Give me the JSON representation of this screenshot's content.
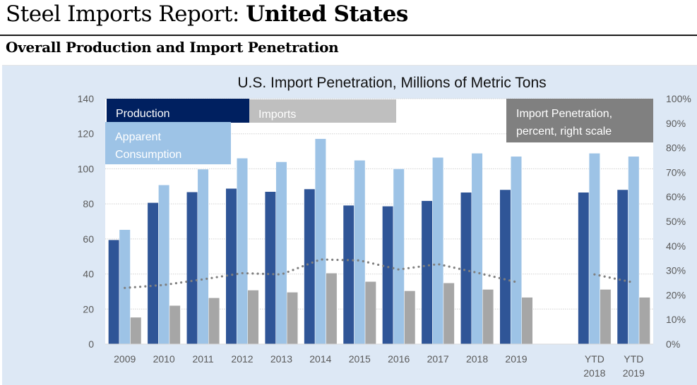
{
  "header": {
    "title_prefix": "Steel Imports Report: ",
    "title_bold": "United States",
    "section_title": "Overall Production and Import Penetration"
  },
  "colors": {
    "production": "#2f5597",
    "apparent_consumption": "#9dc3e6",
    "imports": "#a6a6a6",
    "import_penetration_line": "#7f7f7f",
    "legend_production_bg": "#002060",
    "legend_consumption_bg": "#9dc3e6",
    "legend_imports_bg": "#bfbfbf",
    "legend_penetration_bg": "#808080",
    "panel_bg": "#dde8f5"
  },
  "chart_data": {
    "type": "bar",
    "title": "U.S. Import Penetration, Millions of Metric Tons",
    "categories": [
      "2009",
      "2010",
      "2011",
      "2012",
      "2013",
      "2014",
      "2015",
      "2016",
      "2017",
      "2018",
      "2019",
      "",
      "YTD 2018",
      "YTD 2019"
    ],
    "category_labels": [
      [
        "2009"
      ],
      [
        "2010"
      ],
      [
        "2011"
      ],
      [
        "2012"
      ],
      [
        "2013"
      ],
      [
        "2014"
      ],
      [
        "2015"
      ],
      [
        "2016"
      ],
      [
        "2017"
      ],
      [
        "2018"
      ],
      [
        "2019"
      ],
      [],
      [
        "YTD",
        "2018"
      ],
      [
        "YTD",
        "2019"
      ]
    ],
    "series": [
      {
        "name": "Production",
        "axis": "left",
        "type": "bar",
        "values": [
          59.5,
          80.7,
          86.8,
          88.8,
          87.0,
          88.5,
          79.2,
          78.7,
          81.8,
          86.6,
          88.1,
          null,
          86.6,
          88.1
        ]
      },
      {
        "name": "Apparent Consumption",
        "axis": "left",
        "type": "bar",
        "values": [
          65.3,
          90.8,
          99.8,
          106.1,
          104.0,
          117.2,
          104.9,
          100.0,
          106.5,
          108.9,
          107.1,
          null,
          108.9,
          107.1
        ]
      },
      {
        "name": "Imports",
        "axis": "left",
        "type": "bar",
        "values": [
          15.3,
          22.0,
          26.4,
          30.8,
          29.6,
          40.5,
          35.7,
          30.4,
          34.9,
          31.2,
          26.7,
          null,
          31.2,
          26.7
        ]
      },
      {
        "name": "Import Penetration, percent, right scale",
        "axis": "right",
        "type": "line",
        "style": "dotted",
        "values": [
          22.9,
          24.1,
          26.4,
          28.9,
          28.4,
          34.5,
          34.1,
          30.4,
          32.6,
          29.1,
          25.3,
          null,
          28.4,
          25.1
        ]
      }
    ],
    "legend": [
      {
        "label": "Production",
        "lines": [
          "Production"
        ]
      },
      {
        "label": "Imports",
        "lines": [
          "Imports"
        ]
      },
      {
        "label": "Apparent Consumption",
        "lines": [
          "Apparent",
          "Consumption"
        ]
      },
      {
        "label": "Import Penetration, percent, right scale",
        "lines": [
          "Import Penetration,",
          "percent, right scale"
        ]
      }
    ],
    "xlabel": "",
    "ylabel": "",
    "ylim": [
      0,
      140
    ],
    "yticks": [
      0,
      20,
      40,
      60,
      80,
      100,
      120,
      140
    ],
    "y2lim": [
      0,
      100
    ],
    "y2ticks": [
      "0%",
      "10%",
      "20%",
      "30%",
      "40%",
      "50%",
      "60%",
      "70%",
      "80%",
      "90%",
      "100%"
    ],
    "grid": true,
    "legend_placement": "top"
  }
}
